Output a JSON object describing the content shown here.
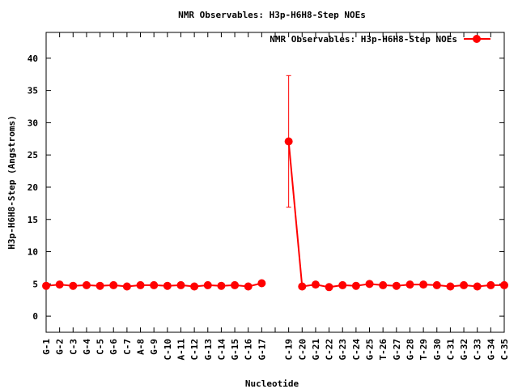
{
  "chart_data": {
    "type": "line",
    "title": "NMR Observables: H3p-H6H8-Step NOEs",
    "xlabel": "Nucleotide",
    "ylabel": "H3p-H6H8-Step (Angstroms)",
    "ylim": [
      -2.5,
      44
    ],
    "yticks": [
      0,
      5,
      10,
      15,
      20,
      25,
      30,
      35,
      40
    ],
    "grid": false,
    "legend_position": "top-right",
    "categories": [
      "G-1",
      "G-2",
      "C-3",
      "G-4",
      "C-5",
      "G-6",
      "C-7",
      "A-8",
      "G-9",
      "C-10",
      "A-11",
      "C-12",
      "G-13",
      "C-14",
      "G-15",
      "C-16",
      "G-17",
      "",
      "C-19",
      "C-20",
      "G-21",
      "C-22",
      "G-23",
      "C-24",
      "G-25",
      "T-26",
      "G-27",
      "G-28",
      "T-29",
      "G-30",
      "C-31",
      "G-32",
      "C-33",
      "G-34",
      "C-35"
    ],
    "series": [
      {
        "name": "NMR Observables: H3p-H6H8-Step NOEs",
        "color": "#ff0000",
        "values": [
          4.7,
          4.9,
          4.7,
          4.8,
          4.7,
          4.8,
          4.6,
          4.8,
          4.8,
          4.7,
          4.8,
          4.6,
          4.8,
          4.7,
          4.8,
          4.6,
          5.1,
          null,
          27.1,
          4.6,
          4.9,
          4.5,
          4.8,
          4.7,
          5.0,
          4.8,
          4.7,
          4.9,
          4.9,
          4.8,
          4.6,
          4.8,
          4.6,
          4.8,
          4.8
        ],
        "error_bars": [
          {
            "category": "C-19",
            "low": 16.9,
            "high": 37.3
          }
        ]
      }
    ]
  }
}
